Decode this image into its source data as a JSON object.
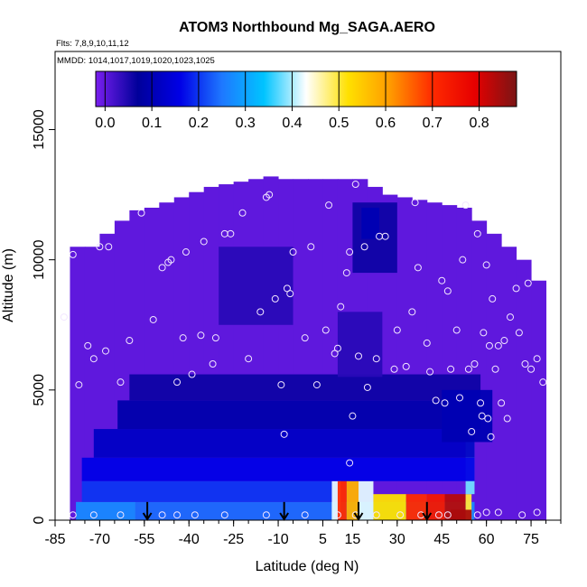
{
  "chart_data": {
    "type": "heatmap",
    "title": "ATOM3 Northbound Mg_SAGA.AERO",
    "flights_note": "Flts: 7,8,9,10,11,12",
    "dates_note": "MMDD: 1014,1017,1019,1020,1023,1025",
    "xlabel": "Latitude (deg N)",
    "ylabel": "Altitude (m)",
    "xlim": [
      -85,
      85
    ],
    "ylim": [
      0,
      18000
    ],
    "x_ticks": [
      -85,
      -70,
      -55,
      -40,
      -25,
      -10,
      5,
      15,
      30,
      45,
      60,
      75
    ],
    "x_tick_labels": [
      "-85",
      "-70",
      "-55",
      "-40",
      "-25",
      "-10",
      "5",
      "15",
      "30",
      "45",
      "60",
      "75"
    ],
    "y_ticks": [
      0,
      5000,
      10000,
      15000
    ],
    "y_tick_labels": [
      "0",
      "5000",
      "10000",
      "15000"
    ],
    "colorbar": {
      "range": [
        -0.02,
        0.88
      ],
      "ticks": [
        0.0,
        0.1,
        0.2,
        0.3,
        0.4,
        0.5,
        0.6,
        0.7,
        0.8
      ],
      "tick_labels": [
        "0.0",
        "0.1",
        "0.2",
        "0.3",
        "0.4",
        "0.5",
        "0.6",
        "0.7",
        "0.8"
      ],
      "colors": [
        "#7a1ff0",
        "#00009a",
        "#0000e6",
        "#1e78ff",
        "#00c4ff",
        "#ffffff",
        "#ffe000",
        "#ff9a00",
        "#ff2a00",
        "#e60000",
        "#7a1515"
      ]
    },
    "altitude_levels": [
      300,
      700,
      1200,
      1700,
      2200,
      2800,
      3500,
      4300,
      5200,
      6200,
      7200,
      8200,
      9200,
      10200,
      11200,
      12200,
      13200
    ],
    "latitude_bands": [
      {
        "lat": [
          -80,
          -75
        ],
        "alt_max": 10500
      },
      {
        "lat": [
          -75,
          -70
        ],
        "alt_max": 10500
      },
      {
        "lat": [
          -70,
          -65
        ],
        "alt_max": 11000
      },
      {
        "lat": [
          -65,
          -60
        ],
        "alt_max": 11500
      },
      {
        "lat": [
          -60,
          -55
        ],
        "alt_max": 11900
      },
      {
        "lat": [
          -55,
          -50
        ],
        "alt_max": 12000
      },
      {
        "lat": [
          -50,
          -45
        ],
        "alt_max": 12200
      },
      {
        "lat": [
          -45,
          -40
        ],
        "alt_max": 12400
      },
      {
        "lat": [
          -40,
          -35
        ],
        "alt_max": 12600
      },
      {
        "lat": [
          -35,
          -30
        ],
        "alt_max": 12800
      },
      {
        "lat": [
          -30,
          -25
        ],
        "alt_max": 12900
      },
      {
        "lat": [
          -25,
          -20
        ],
        "alt_max": 13000
      },
      {
        "lat": [
          -20,
          -15
        ],
        "alt_max": 13100
      },
      {
        "lat": [
          -15,
          -10
        ],
        "alt_max": 13200
      },
      {
        "lat": [
          -10,
          -5
        ],
        "alt_max": 13100
      },
      {
        "lat": [
          -5,
          0
        ],
        "alt_max": 13100
      },
      {
        "lat": [
          0,
          5
        ],
        "alt_max": 13100
      },
      {
        "lat": [
          5,
          10
        ],
        "alt_max": 13100
      },
      {
        "lat": [
          10,
          15
        ],
        "alt_max": 13100
      },
      {
        "lat": [
          15,
          20
        ],
        "alt_max": 13100
      },
      {
        "lat": [
          20,
          25
        ],
        "alt_max": 12800
      },
      {
        "lat": [
          25,
          30
        ],
        "alt_max": 12500
      },
      {
        "lat": [
          30,
          35
        ],
        "alt_max": 12400
      },
      {
        "lat": [
          35,
          40
        ],
        "alt_max": 12300
      },
      {
        "lat": [
          40,
          45
        ],
        "alt_max": 12200
      },
      {
        "lat": [
          45,
          50
        ],
        "alt_max": 12100
      },
      {
        "lat": [
          50,
          55
        ],
        "alt_max": 12000
      },
      {
        "lat": [
          55,
          60
        ],
        "alt_max": 11500
      },
      {
        "lat": [
          60,
          65
        ],
        "alt_max": 11000
      },
      {
        "lat": [
          65,
          70
        ],
        "alt_max": 10500
      },
      {
        "lat": [
          70,
          75
        ],
        "alt_max": 10000
      },
      {
        "lat": [
          75,
          80
        ],
        "alt_max": 9200
      }
    ],
    "features": [
      {
        "lat": [
          -78,
          -58
        ],
        "alt": [
          0,
          700
        ],
        "value": 0.27
      },
      {
        "lat": [
          -58,
          8
        ],
        "alt": [
          0,
          700
        ],
        "value": 0.24
      },
      {
        "lat": [
          8,
          56
        ],
        "alt": [
          0,
          700
        ],
        "value": 0.27
      },
      {
        "lat": [
          8,
          11
        ],
        "alt": [
          0,
          1500
        ],
        "value": 0.42
      },
      {
        "lat": [
          10,
          13
        ],
        "alt": [
          0,
          1500
        ],
        "value": 0.7
      },
      {
        "lat": [
          13,
          17
        ],
        "alt": [
          0,
          1500
        ],
        "value": 0.58
      },
      {
        "lat": [
          17,
          22
        ],
        "alt": [
          0,
          1500
        ],
        "value": 0.42
      },
      {
        "lat": [
          22,
          33
        ],
        "alt": [
          0,
          1000
        ],
        "value": 0.52
      },
      {
        "lat": [
          33,
          40
        ],
        "alt": [
          0,
          1000
        ],
        "value": 0.7
      },
      {
        "lat": [
          40,
          46
        ],
        "alt": [
          0,
          1000
        ],
        "value": 0.74
      },
      {
        "lat": [
          46,
          53
        ],
        "alt": [
          0,
          1000
        ],
        "value": 0.83
      },
      {
        "lat": [
          53,
          55
        ],
        "alt": [
          0,
          1000
        ],
        "value": 0.5
      },
      {
        "lat": [
          48,
          55
        ],
        "alt": [
          0,
          400
        ],
        "value": 0.84
      },
      {
        "lat": [
          53,
          56
        ],
        "alt": [
          1000,
          3400
        ],
        "value": 0.38
      },
      {
        "lat": [
          -76,
          8
        ],
        "alt": [
          700,
          1500
        ],
        "value": 0.2
      },
      {
        "lat": [
          -76,
          56
        ],
        "alt": [
          1500,
          2400
        ],
        "value": 0.16
      },
      {
        "lat": [
          -72,
          56
        ],
        "alt": [
          2400,
          3500
        ],
        "value": 0.12
      },
      {
        "lat": [
          -64,
          58
        ],
        "alt": [
          3500,
          4600
        ],
        "value": 0.09
      },
      {
        "lat": [
          -60,
          58
        ],
        "alt": [
          4600,
          5600
        ],
        "value": 0.06
      },
      {
        "lat": [
          45,
          62
        ],
        "alt": [
          3000,
          5000
        ],
        "value": 0.1
      },
      {
        "lat": [
          -30,
          -5
        ],
        "alt": [
          7500,
          10500
        ],
        "value": 0.04
      },
      {
        "lat": [
          10,
          25
        ],
        "alt": [
          5500,
          8000
        ],
        "value": 0.04
      },
      {
        "lat": [
          15,
          30
        ],
        "alt": [
          9500,
          12200
        ],
        "value": 0.06
      },
      {
        "lat": [
          18,
          24
        ],
        "alt": [
          10800,
          12000
        ],
        "value": 0.1
      }
    ],
    "points": [
      {
        "lat": -82,
        "alt": 7800
      },
      {
        "lat": -79,
        "alt": 10200
      },
      {
        "lat": -77,
        "alt": 5200
      },
      {
        "lat": -74,
        "alt": 6700
      },
      {
        "lat": -72,
        "alt": 6200
      },
      {
        "lat": -70,
        "alt": 10500
      },
      {
        "lat": -68,
        "alt": 6500
      },
      {
        "lat": -67,
        "alt": 10500
      },
      {
        "lat": -63,
        "alt": 5300
      },
      {
        "lat": -60,
        "alt": 6900
      },
      {
        "lat": -56,
        "alt": 11800
      },
      {
        "lat": -52,
        "alt": 7700
      },
      {
        "lat": -49,
        "alt": 9700
      },
      {
        "lat": -47,
        "alt": 9900
      },
      {
        "lat": -46,
        "alt": 10000
      },
      {
        "lat": -44,
        "alt": 5300
      },
      {
        "lat": -42,
        "alt": 7000
      },
      {
        "lat": -41,
        "alt": 10300
      },
      {
        "lat": -39,
        "alt": 5600
      },
      {
        "lat": -36,
        "alt": 7100
      },
      {
        "lat": -35,
        "alt": 10700
      },
      {
        "lat": -32,
        "alt": 6000
      },
      {
        "lat": -31,
        "alt": 7000
      },
      {
        "lat": -28,
        "alt": 11000
      },
      {
        "lat": -26,
        "alt": 11000
      },
      {
        "lat": -22,
        "alt": 11800
      },
      {
        "lat": -20,
        "alt": 6200
      },
      {
        "lat": -16,
        "alt": 8000
      },
      {
        "lat": -14,
        "alt": 12400
      },
      {
        "lat": -13,
        "alt": 12500
      },
      {
        "lat": -11,
        "alt": 8500
      },
      {
        "lat": -9,
        "alt": 5200
      },
      {
        "lat": -8,
        "alt": 3300
      },
      {
        "lat": -7,
        "alt": 8900
      },
      {
        "lat": -6,
        "alt": 8700
      },
      {
        "lat": -5,
        "alt": 10300
      },
      {
        "lat": -1,
        "alt": 7000
      },
      {
        "lat": 1,
        "alt": 10500
      },
      {
        "lat": 3,
        "alt": 5200
      },
      {
        "lat": 6,
        "alt": 7300
      },
      {
        "lat": 7,
        "alt": 12100
      },
      {
        "lat": 9,
        "alt": 6400
      },
      {
        "lat": 10,
        "alt": 6600
      },
      {
        "lat": 11,
        "alt": 8200
      },
      {
        "lat": 13,
        "alt": 9500
      },
      {
        "lat": 14,
        "alt": 10300
      },
      {
        "lat": 15,
        "alt": 4000
      },
      {
        "lat": 16,
        "alt": 12900
      },
      {
        "lat": 17,
        "alt": 6300
      },
      {
        "lat": 19,
        "alt": 10500
      },
      {
        "lat": 20,
        "alt": 5100
      },
      {
        "lat": 23,
        "alt": 6200
      },
      {
        "lat": 24,
        "alt": 10900
      },
      {
        "lat": 26,
        "alt": 10900
      },
      {
        "lat": 29,
        "alt": 5800
      },
      {
        "lat": 30,
        "alt": 7300
      },
      {
        "lat": 33,
        "alt": 5900
      },
      {
        "lat": 35,
        "alt": 8000
      },
      {
        "lat": 36,
        "alt": 12200
      },
      {
        "lat": 37,
        "alt": 9700
      },
      {
        "lat": 40,
        "alt": 6800
      },
      {
        "lat": 41,
        "alt": 5700
      },
      {
        "lat": 43,
        "alt": 4600
      },
      {
        "lat": 45,
        "alt": 9200
      },
      {
        "lat": 46,
        "alt": 4500
      },
      {
        "lat": 47,
        "alt": 8800
      },
      {
        "lat": 48,
        "alt": 5800
      },
      {
        "lat": 50,
        "alt": 7300
      },
      {
        "lat": 51,
        "alt": 4700
      },
      {
        "lat": 52,
        "alt": 10000
      },
      {
        "lat": 53,
        "alt": 12100
      },
      {
        "lat": 54,
        "alt": 5800
      },
      {
        "lat": 55,
        "alt": 3400
      },
      {
        "lat": 56,
        "alt": 6000
      },
      {
        "lat": 57,
        "alt": 11000
      },
      {
        "lat": 58,
        "alt": 4500
      },
      {
        "lat": 58.5,
        "alt": 4000
      },
      {
        "lat": 59,
        "alt": 7200
      },
      {
        "lat": 60,
        "alt": 9800
      },
      {
        "lat": 60.5,
        "alt": 3900
      },
      {
        "lat": 61,
        "alt": 6700
      },
      {
        "lat": 61.5,
        "alt": 3200
      },
      {
        "lat": 62,
        "alt": 8500
      },
      {
        "lat": 63,
        "alt": 5800
      },
      {
        "lat": 64,
        "alt": 6700
      },
      {
        "lat": 65,
        "alt": 4500
      },
      {
        "lat": 66,
        "alt": 6900
      },
      {
        "lat": 67,
        "alt": 3900
      },
      {
        "lat": 68,
        "alt": 7800
      },
      {
        "lat": 70,
        "alt": 8900
      },
      {
        "lat": 71,
        "alt": 7200
      },
      {
        "lat": 73,
        "alt": 6000
      },
      {
        "lat": 74,
        "alt": 9100
      },
      {
        "lat": 75,
        "alt": 5800
      },
      {
        "lat": 77,
        "alt": 6200
      },
      {
        "lat": 79,
        "alt": 5300
      },
      {
        "lat": -79,
        "alt": 200
      },
      {
        "lat": -72,
        "alt": 200
      },
      {
        "lat": -63,
        "alt": 200
      },
      {
        "lat": -49,
        "alt": 200
      },
      {
        "lat": -44,
        "alt": 200
      },
      {
        "lat": -38,
        "alt": 200
      },
      {
        "lat": -28,
        "alt": 200
      },
      {
        "lat": -14,
        "alt": 200
      },
      {
        "lat": -1,
        "alt": 200
      },
      {
        "lat": 10,
        "alt": 200
      },
      {
        "lat": 14,
        "alt": 2200
      },
      {
        "lat": 16,
        "alt": 200
      },
      {
        "lat": 23,
        "alt": 200
      },
      {
        "lat": 31,
        "alt": 200
      },
      {
        "lat": 38,
        "alt": 200
      },
      {
        "lat": 44,
        "alt": 200
      },
      {
        "lat": 47,
        "alt": 200
      },
      {
        "lat": 57,
        "alt": 200
      },
      {
        "lat": 60,
        "alt": 300
      },
      {
        "lat": 64,
        "alt": 300
      },
      {
        "lat": 72,
        "alt": 200
      },
      {
        "lat": 77,
        "alt": 300
      }
    ],
    "arrows": [
      {
        "lat": -54,
        "alt_top": 700,
        "alt_bottom": 0
      },
      {
        "lat": -8,
        "alt_top": 700,
        "alt_bottom": 0
      },
      {
        "lat": 17,
        "alt_top": 700,
        "alt_bottom": 0
      },
      {
        "lat": 40,
        "alt_top": 700,
        "alt_bottom": 0
      }
    ]
  }
}
